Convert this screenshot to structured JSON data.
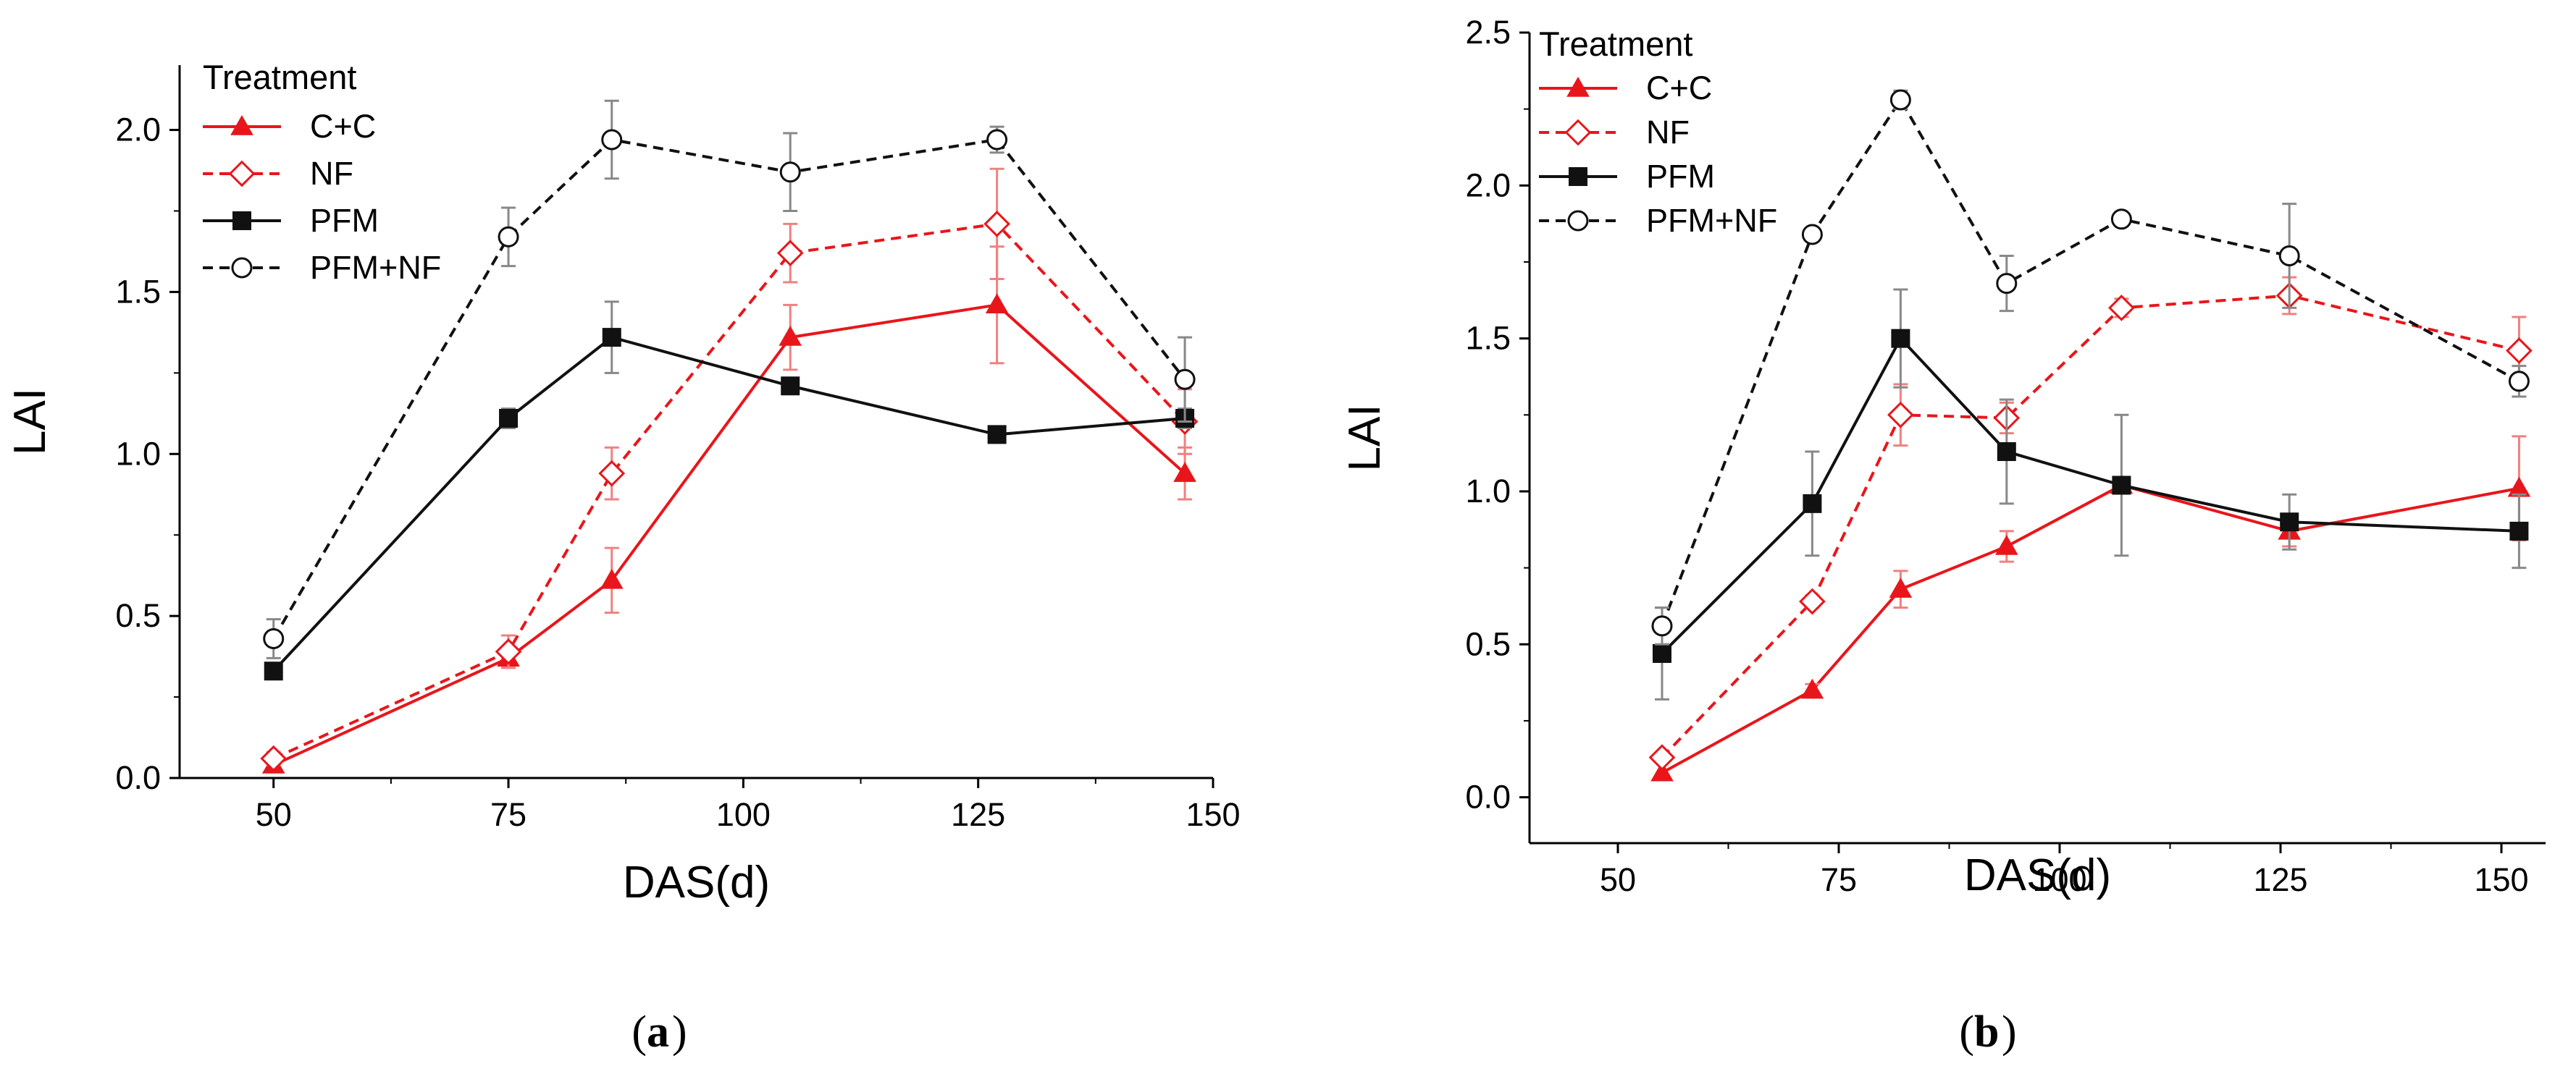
{
  "figure": {
    "colors": {
      "red": "#e8161b",
      "red_light": "#f28b8b",
      "black": "#111111",
      "gray": "#777777"
    },
    "legend_title": "Treatment",
    "panels": [
      {
        "id": "a",
        "caption_letter": "a"
      },
      {
        "id": "b",
        "caption_letter": "b"
      }
    ]
  },
  "chart_data": [
    {
      "type": "line",
      "panel": "a",
      "xlabel": "DAS(d)",
      "ylabel": "LAI",
      "xlim": [
        40,
        150
      ],
      "ylim": [
        0,
        2.2
      ],
      "xticks": [
        50,
        75,
        100,
        125,
        150
      ],
      "yticks": [
        0.0,
        0.5,
        1.0,
        1.5,
        2.0
      ],
      "ytick_labels": [
        "0.0",
        "0.5",
        "1.0",
        "1.5",
        "2.0"
      ],
      "legend_position": "top-left",
      "series": [
        {
          "name": "C+C",
          "color": "#e8161b",
          "dash": "solid",
          "marker": "triangle",
          "x": [
            50,
            75,
            86,
            105,
            127,
            147
          ],
          "y": [
            0.04,
            0.37,
            0.61,
            1.36,
            1.46,
            0.94
          ],
          "err": [
            0.02,
            0.03,
            0.1,
            0.1,
            0.18,
            0.08
          ]
        },
        {
          "name": "NF",
          "color": "#e8161b",
          "dash": "dashed",
          "marker": "diamond-open",
          "x": [
            50,
            75,
            86,
            105,
            127,
            147
          ],
          "y": [
            0.06,
            0.39,
            0.94,
            1.62,
            1.71,
            1.1
          ],
          "err": [
            0.02,
            0.05,
            0.08,
            0.09,
            0.17,
            0.1
          ]
        },
        {
          "name": "PFM",
          "color": "#111111",
          "dash": "solid",
          "marker": "square",
          "x": [
            50,
            75,
            86,
            105,
            127,
            147
          ],
          "y": [
            0.33,
            1.11,
            1.36,
            1.21,
            1.06,
            1.11
          ],
          "err": [
            0.02,
            0.03,
            0.11,
            0.0,
            0.0,
            0.03
          ]
        },
        {
          "name": "PFM+NF",
          "color": "#111111",
          "dash": "dashed",
          "marker": "circle-open",
          "x": [
            50,
            75,
            86,
            105,
            127,
            147
          ],
          "y": [
            0.43,
            1.67,
            1.97,
            1.87,
            1.97,
            1.23
          ],
          "err": [
            0.06,
            0.09,
            0.12,
            0.12,
            0.04,
            0.13
          ]
        }
      ]
    },
    {
      "type": "line",
      "panel": "b",
      "xlabel": "DAS(d)",
      "ylabel": "LAI",
      "xlim": [
        40,
        155
      ],
      "ylim": [
        -0.15,
        2.5
      ],
      "xticks": [
        50,
        75,
        100,
        125,
        150
      ],
      "yticks": [
        0.0,
        0.5,
        1.0,
        1.5,
        2.0,
        2.5
      ],
      "ytick_labels": [
        "0.0",
        "0.5",
        "1.0",
        "1.5",
        "2.0",
        "2.5"
      ],
      "legend_position": "top-left",
      "series": [
        {
          "name": "C+C",
          "color": "#e8161b",
          "dash": "solid",
          "marker": "triangle",
          "x": [
            55,
            72,
            82,
            94,
            107,
            126,
            152
          ],
          "y": [
            0.08,
            0.35,
            0.68,
            0.82,
            1.02,
            0.87,
            1.01
          ],
          "err": [
            0.0,
            0.02,
            0.06,
            0.05,
            0.0,
            0.05,
            0.17
          ]
        },
        {
          "name": "NF",
          "color": "#e8161b",
          "dash": "dashed",
          "marker": "diamond-open",
          "x": [
            55,
            72,
            82,
            94,
            107,
            126,
            152
          ],
          "y": [
            0.13,
            0.64,
            1.25,
            1.24,
            1.6,
            1.64,
            1.46
          ],
          "err": [
            0.0,
            0.02,
            0.1,
            0.05,
            0.03,
            0.06,
            0.11
          ]
        },
        {
          "name": "PFM",
          "color": "#111111",
          "dash": "solid",
          "marker": "square",
          "x": [
            55,
            72,
            82,
            94,
            107,
            126,
            152
          ],
          "y": [
            0.47,
            0.96,
            1.5,
            1.13,
            1.02,
            0.9,
            0.87
          ],
          "err": [
            0.15,
            0.17,
            0.16,
            0.17,
            0.23,
            0.09,
            0.12
          ]
        },
        {
          "name": "PFM+NF",
          "color": "#111111",
          "dash": "dashed",
          "marker": "circle-open",
          "x": [
            55,
            72,
            82,
            94,
            107,
            126,
            152
          ],
          "y": [
            0.56,
            1.84,
            2.28,
            1.68,
            1.89,
            1.77,
            1.36
          ],
          "err": [
            0.06,
            0.02,
            0.03,
            0.09,
            0.02,
            0.17,
            0.05
          ]
        }
      ]
    }
  ]
}
